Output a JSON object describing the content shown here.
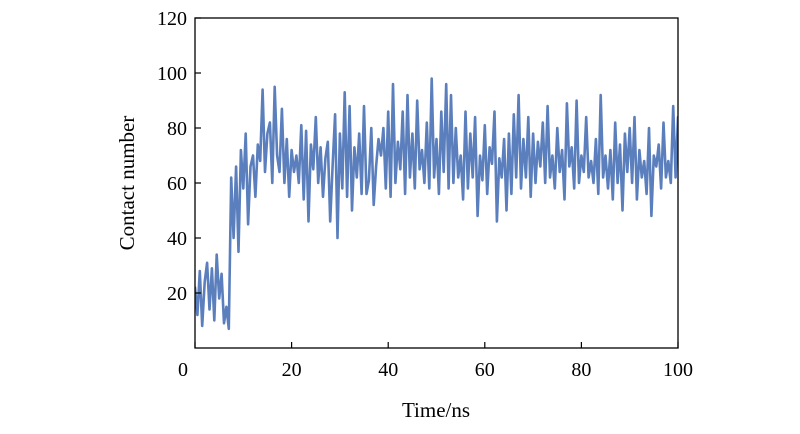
{
  "chart_data": {
    "type": "line",
    "title": "",
    "xlabel": "Time/ns",
    "ylabel": "Contact number",
    "xlim": [
      0,
      100
    ],
    "ylim": [
      0,
      120
    ],
    "x_ticks": [
      0,
      20,
      40,
      60,
      80,
      100
    ],
    "y_ticks": [
      20,
      40,
      60,
      80,
      100,
      120
    ],
    "grid": false,
    "legend": "none",
    "line_color": "#5b7fbd",
    "series": [
      {
        "x": [
          0,
          0.5,
          1,
          1.5,
          2,
          2.5,
          3,
          3.5,
          4,
          4.5,
          5,
          5.5,
          6,
          6.5,
          7,
          7.5,
          8,
          8.5,
          9,
          9.5,
          10,
          10.5,
          11,
          11.5,
          12,
          12.5,
          13,
          13.5,
          14,
          14.5,
          15,
          15.5,
          16,
          16.5,
          17,
          17.5,
          18,
          18.5,
          19,
          19.5,
          20,
          20.5,
          21,
          21.5,
          22,
          22.5,
          23,
          23.5,
          24,
          24.5,
          25,
          25.5,
          26,
          26.5,
          27,
          27.5,
          28,
          28.5,
          29,
          29.5,
          30,
          30.5,
          31,
          31.5,
          32,
          32.5,
          33,
          33.5,
          34,
          34.5,
          35,
          35.5,
          36,
          36.5,
          37,
          37.5,
          38,
          38.5,
          39,
          39.5,
          40,
          40.5,
          41,
          41.5,
          42,
          42.5,
          43,
          43.5,
          44,
          44.5,
          45,
          45.5,
          46,
          46.5,
          47,
          47.5,
          48,
          48.5,
          49,
          49.5,
          50,
          50.5,
          51,
          51.5,
          52,
          52.5,
          53,
          53.5,
          54,
          54.5,
          55,
          55.5,
          56,
          56.5,
          57,
          57.5,
          58,
          58.5,
          59,
          59.5,
          60,
          60.5,
          61,
          61.5,
          62,
          62.5,
          63,
          63.5,
          64,
          64.5,
          65,
          65.5,
          66,
          66.5,
          67,
          67.5,
          68,
          68.5,
          69,
          69.5,
          70,
          70.5,
          71,
          71.5,
          72,
          72.5,
          73,
          73.5,
          74,
          74.5,
          75,
          75.5,
          76,
          76.5,
          77,
          77.5,
          78,
          78.5,
          79,
          79.5,
          80,
          80.5,
          81,
          81.5,
          82,
          82.5,
          83,
          83.5,
          84,
          84.5,
          85,
          85.5,
          86,
          86.5,
          87,
          87.5,
          88,
          88.5,
          89,
          89.5,
          90,
          90.5,
          91,
          91.5,
          92,
          92.5,
          93,
          93.5,
          94,
          94.5,
          95,
          95.5,
          96,
          96.5,
          97,
          97.5,
          98,
          98.5,
          99,
          99.5,
          100
        ],
        "y": [
          22,
          12,
          28,
          8,
          24,
          31,
          14,
          29,
          10,
          34,
          18,
          27,
          9,
          15,
          7,
          62,
          40,
          66,
          35,
          72,
          58,
          78,
          45,
          66,
          70,
          55,
          74,
          68,
          94,
          64,
          78,
          82,
          60,
          95,
          70,
          64,
          87,
          60,
          76,
          55,
          72,
          64,
          70,
          60,
          81,
          54,
          79,
          46,
          74,
          65,
          84,
          60,
          73,
          55,
          69,
          75,
          46,
          67,
          85,
          40,
          78,
          58,
          93,
          55,
          88,
          50,
          73,
          62,
          78,
          56,
          88,
          56,
          61,
          80,
          52,
          66,
          76,
          70,
          80,
          58,
          86,
          55,
          96,
          60,
          75,
          65,
          86,
          56,
          92,
          62,
          78,
          58,
          90,
          65,
          72,
          60,
          82,
          58,
          98,
          62,
          76,
          56,
          86,
          64,
          96,
          58,
          92,
          60,
          80,
          62,
          70,
          54,
          86,
          58,
          78,
          62,
          84,
          48,
          70,
          61,
          81,
          56,
          73,
          67,
          86,
          46,
          69,
          62,
          76,
          50,
          78,
          56,
          85,
          62,
          92,
          58,
          76,
          62,
          84,
          55,
          78,
          60,
          75,
          66,
          82,
          60,
          88,
          62,
          70,
          58,
          80,
          64,
          72,
          54,
          89,
          66,
          73,
          58,
          90,
          60,
          70,
          64,
          84,
          62,
          68,
          60,
          76,
          56,
          92,
          62,
          70,
          58,
          72,
          54,
          82,
          60,
          74,
          50,
          78,
          64,
          80,
          60,
          84,
          54,
          72,
          62,
          68,
          56,
          80,
          48,
          70,
          66,
          74,
          58,
          82,
          62,
          68,
          60,
          88,
          62,
          84
        ]
      }
    ]
  }
}
